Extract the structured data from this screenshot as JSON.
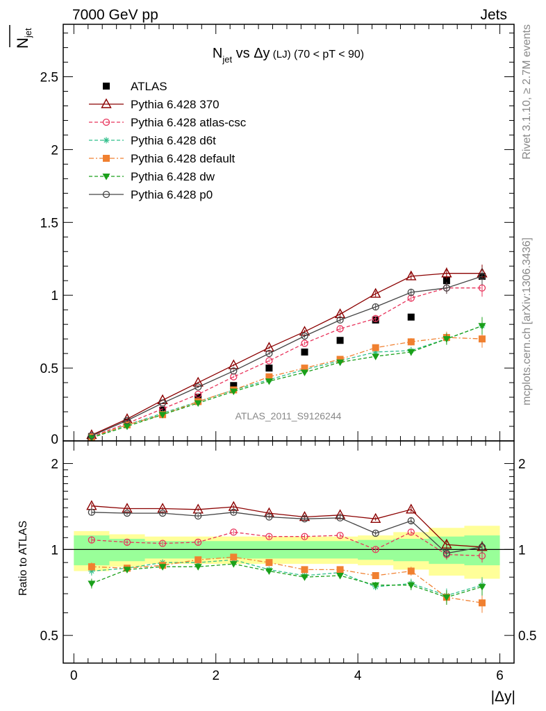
{
  "header": {
    "left": "7000 GeV pp",
    "right": "Jets"
  },
  "side": {
    "rivet": "Rivet 3.1.10, ≥ 2.7M events",
    "mcplots": "mcplots.cern.ch [arXiv:1306.3436]"
  },
  "chart_data": [
    {
      "type": "scatter",
      "title_main": "N",
      "title_sub": "jet",
      "title_rest": " vs Δy",
      "title_small": " (LJ)",
      "title_cut": " (70 < pT <  90)",
      "ylabel": "N",
      "ylabel_sub": "jet",
      "watermark": "ATLAS_2011_S9126244",
      "xlim": [
        -0.15,
        6.2
      ],
      "ylim": [
        0,
        2.86
      ],
      "x_ticks": [
        0,
        2,
        4,
        6
      ],
      "y_ticks": [
        {
          "v": 0.5,
          "label": "0.5"
        },
        {
          "v": 1,
          "label": "1"
        },
        {
          "v": 1.5,
          "label": "1.5"
        },
        {
          "v": 2,
          "label": "2"
        },
        {
          "v": 2.5,
          "label": "2.5"
        }
      ],
      "y_zero_label": "0",
      "x": [
        0.25,
        0.75,
        1.25,
        1.75,
        2.25,
        2.75,
        3.25,
        3.75,
        4.25,
        4.75,
        5.25,
        5.75
      ],
      "series": [
        {
          "name": "ATLAS",
          "color": "#000000",
          "marker": "square",
          "line": "none",
          "values": [
            0.03,
            0.13,
            0.21,
            0.3,
            0.38,
            0.5,
            0.61,
            0.69,
            0.83,
            0.85,
            1.1,
            1.13
          ],
          "errors": [
            0.01,
            0.01,
            0.01,
            0.01,
            0.01,
            0.01,
            0.01,
            0.01,
            0.02,
            0.02,
            0.04,
            0.07
          ]
        },
        {
          "name": "Pythia 6.428 370",
          "color": "#8b0000",
          "marker": "triangle-open",
          "line": "solid",
          "values": [
            0.04,
            0.15,
            0.28,
            0.4,
            0.52,
            0.64,
            0.75,
            0.87,
            1.01,
            1.13,
            1.15,
            1.15
          ],
          "errors": [
            0.002,
            0.004,
            0.005,
            0.006,
            0.008,
            0.01,
            0.012,
            0.015,
            0.02,
            0.025,
            0.04,
            0.06
          ]
        },
        {
          "name": "Pythia 6.428 atlas-csc",
          "color": "#e8335b",
          "marker": "circle-open",
          "line": "dashed",
          "values": [
            0.03,
            0.12,
            0.22,
            0.32,
            0.44,
            0.55,
            0.67,
            0.77,
            0.84,
            0.98,
            1.05,
            1.05
          ],
          "errors": [
            0.002,
            0.004,
            0.005,
            0.006,
            0.008,
            0.01,
            0.012,
            0.015,
            0.02,
            0.025,
            0.04,
            0.06
          ]
        },
        {
          "name": "Pythia 6.428 d6t",
          "color": "#2fbf8a",
          "marker": "star",
          "line": "dashed",
          "values": [
            0.025,
            0.11,
            0.19,
            0.27,
            0.35,
            0.42,
            0.49,
            0.55,
            0.61,
            0.62,
            0.7,
            0.79
          ],
          "errors": [
            0.002,
            0.004,
            0.005,
            0.006,
            0.008,
            0.01,
            0.012,
            0.015,
            0.02,
            0.025,
            0.04,
            0.06
          ]
        },
        {
          "name": "Pythia 6.428 default",
          "color": "#f08030",
          "marker": "square",
          "line": "dashdot",
          "values": [
            0.026,
            0.11,
            0.18,
            0.27,
            0.35,
            0.44,
            0.5,
            0.56,
            0.64,
            0.68,
            0.71,
            0.7
          ],
          "errors": [
            0.002,
            0.004,
            0.005,
            0.006,
            0.008,
            0.01,
            0.012,
            0.015,
            0.02,
            0.025,
            0.04,
            0.06
          ]
        },
        {
          "name": "Pythia 6.428 dw",
          "color": "#1aa01a",
          "marker": "triangle-down",
          "line": "dashed",
          "values": [
            0.022,
            0.1,
            0.18,
            0.26,
            0.34,
            0.41,
            0.47,
            0.54,
            0.58,
            0.61,
            0.7,
            0.79
          ],
          "errors": [
            0.002,
            0.004,
            0.005,
            0.006,
            0.008,
            0.01,
            0.012,
            0.015,
            0.02,
            0.025,
            0.04,
            0.06
          ]
        },
        {
          "name": "Pythia 6.428 p0",
          "color": "#444444",
          "marker": "circle-open",
          "line": "solid",
          "values": [
            0.035,
            0.14,
            0.26,
            0.37,
            0.48,
            0.6,
            0.72,
            0.83,
            0.92,
            1.02,
            1.05,
            1.13
          ],
          "errors": [
            0.002,
            0.004,
            0.005,
            0.006,
            0.008,
            0.01,
            0.012,
            0.015,
            0.02,
            0.025,
            0.04,
            0.06
          ]
        }
      ]
    },
    {
      "type": "line",
      "ylabel": "Ratio to ATLAS",
      "xlabel": "|Δy|",
      "log_y": true,
      "xlim": [
        -0.15,
        6.2
      ],
      "ylim": [
        0.4,
        2.4
      ],
      "x_ticks": [
        0,
        2,
        4,
        6
      ],
      "y_ticks": [
        {
          "v": 0.5,
          "label": "0.5"
        },
        {
          "v": 1,
          "label": "1"
        },
        {
          "v": 2,
          "label": "2"
        }
      ],
      "x": [
        0.25,
        0.75,
        1.25,
        1.75,
        2.25,
        2.75,
        3.25,
        3.75,
        4.25,
        4.75,
        5.25,
        5.75
      ],
      "band_inner": [
        0.12,
        0.09,
        0.07,
        0.07,
        0.07,
        0.07,
        0.07,
        0.07,
        0.08,
        0.09,
        0.11,
        0.12
      ],
      "band_outer": [
        0.16,
        0.13,
        0.11,
        0.11,
        0.11,
        0.11,
        0.11,
        0.11,
        0.12,
        0.15,
        0.19,
        0.21
      ],
      "series": [
        {
          "name": "Pythia 6.428 370",
          "values": [
            1.42,
            1.39,
            1.39,
            1.38,
            1.41,
            1.34,
            1.3,
            1.32,
            1.28,
            1.38,
            1.04,
            1.02
          ]
        },
        {
          "name": "Pythia 6.428 atlas-csc",
          "values": [
            1.08,
            1.06,
            1.05,
            1.06,
            1.15,
            1.11,
            1.11,
            1.12,
            1.0,
            1.15,
            0.96,
            0.95
          ]
        },
        {
          "name": "Pythia 6.428 d6t",
          "values": [
            0.84,
            0.86,
            0.9,
            0.9,
            0.92,
            0.85,
            0.81,
            0.83,
            0.74,
            0.76,
            0.69,
            0.75
          ]
        },
        {
          "name": "Pythia 6.428 default",
          "values": [
            0.87,
            0.86,
            0.88,
            0.92,
            0.94,
            0.9,
            0.85,
            0.85,
            0.81,
            0.84,
            0.68,
            0.65
          ]
        },
        {
          "name": "Pythia 6.428 dw",
          "values": [
            0.76,
            0.85,
            0.87,
            0.87,
            0.89,
            0.84,
            0.8,
            0.81,
            0.75,
            0.75,
            0.68,
            0.74
          ]
        },
        {
          "name": "Pythia 6.428 p0",
          "values": [
            1.35,
            1.34,
            1.34,
            1.31,
            1.35,
            1.3,
            1.28,
            1.29,
            1.14,
            1.26,
            0.97,
            1.02
          ]
        }
      ],
      "ratio_errors": [
        0.03,
        0.02,
        0.02,
        0.02,
        0.02,
        0.02,
        0.02,
        0.02,
        0.02,
        0.03,
        0.04,
        0.05
      ]
    }
  ]
}
